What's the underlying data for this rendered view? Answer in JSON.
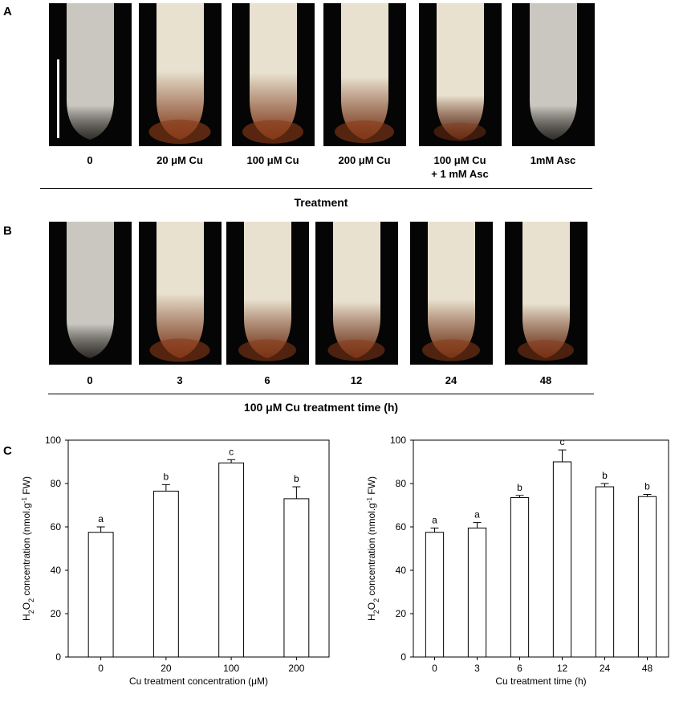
{
  "panels": {
    "a": {
      "letter": "A",
      "labels": [
        [
          "0"
        ],
        [
          "20 μM Cu"
        ],
        [
          "100 μM Cu"
        ],
        [
          "200 μM Cu"
        ],
        [
          "100 μM Cu",
          "+ 1 mM Asc"
        ],
        [
          "1mM Asc"
        ]
      ],
      "axis_title": "Treatment"
    },
    "b": {
      "letter": "B",
      "labels": [
        "0",
        "3",
        "6",
        "12",
        "24",
        "48"
      ],
      "axis_title": "100 μM Cu treatment time (h)"
    },
    "c": {
      "letter": "C"
    }
  },
  "stain_colors": {
    "control": "#c9c7c0",
    "root_body": "#e8e1cf",
    "stain": "#8a3a18"
  },
  "chart_data": [
    {
      "type": "bar",
      "categories": [
        "0",
        "20",
        "100",
        "200"
      ],
      "values": [
        57.5,
        76.5,
        89.5,
        73
      ],
      "errors": [
        2.5,
        3,
        1.5,
        5.5
      ],
      "letters": [
        "a",
        "b",
        "c",
        "b"
      ],
      "xlabel": "Cu treatment concentration (μM)",
      "ylabel_parts": [
        "H",
        "2",
        "O",
        "2",
        " concentration (nmol.g",
        "-1",
        " FW)"
      ],
      "ylim": [
        0,
        100
      ],
      "yticks": [
        "0",
        "20",
        "40",
        "60",
        "80",
        "100"
      ]
    },
    {
      "type": "bar",
      "categories": [
        "0",
        "3",
        "6",
        "12",
        "24",
        "48"
      ],
      "values": [
        57.5,
        59.5,
        73.5,
        90,
        78.5,
        74
      ],
      "errors": [
        2,
        2.5,
        1,
        5.5,
        1.5,
        1
      ],
      "letters": [
        "a",
        "a",
        "b",
        "c",
        "b",
        "b"
      ],
      "xlabel": "Cu treatment time (h)",
      "ylabel_parts": [
        "H",
        "2",
        "O",
        "2",
        " concentration (nmol.g",
        "-1",
        " FW)"
      ],
      "ylim": [
        0,
        100
      ],
      "yticks": [
        "0",
        "20",
        "40",
        "60",
        "80",
        "100"
      ]
    }
  ]
}
